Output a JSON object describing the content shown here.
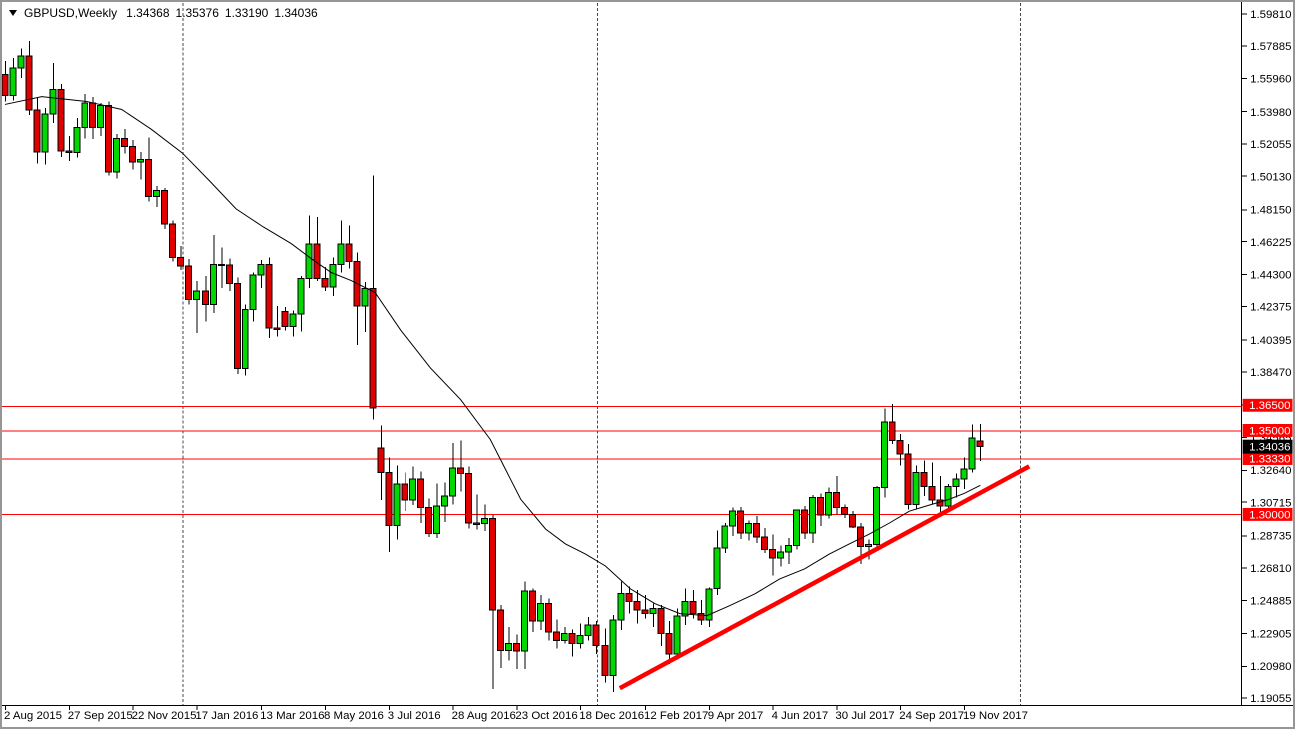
{
  "header": {
    "symbol": "GBPUSD,Weekly",
    "open": "1.34368",
    "high": "1.35376",
    "low": "1.33190",
    "close": "1.34036"
  },
  "colors": {
    "up_candle": "#00D800",
    "down_candle": "#E00000",
    "candle_outline": "#000000",
    "level_line": "#FF0000",
    "trend_line": "#FF0000",
    "ma_line": "#000000",
    "axis_line": "#000000",
    "separator": "#4a4a4a",
    "level_label_bg": "#FF0000",
    "current_label_bg": "#000000",
    "label_text": "#FFFFFF",
    "axis_text": "#000000"
  },
  "chart_data": {
    "type": "candlestick",
    "title": "GBPUSD,Weekly",
    "symbol": "GBPUSD",
    "timeframe": "Weekly",
    "current_ohlc": {
      "open": 1.34368,
      "high": 1.35376,
      "low": 1.3319,
      "close": 1.34036
    },
    "x_axis_labels": [
      "2 Aug 2015",
      "27 Sep 2015",
      "22 Nov 2015",
      "17 Jan 2016",
      "13 Mar 2016",
      "8 May 2016",
      "3 Jul 2016",
      "28 Aug 2016",
      "23 Oct 2016",
      "18 Dec 2016",
      "12 Feb 2017",
      "9 Apr 2017",
      "4 Jun 2017",
      "30 Jul 2017",
      "24 Sep 2017",
      "19 Nov 2017"
    ],
    "candles_per_x_label": 8,
    "y_axis_ticks": [
      "1.59810",
      "1.57885",
      "1.55960",
      "1.53980",
      "1.52055",
      "1.50130",
      "1.48150",
      "1.46225",
      "1.44300",
      "1.42375",
      "1.40395",
      "1.38470",
      "1.36545",
      "1.34565",
      "1.32640",
      "1.30715",
      "1.28735",
      "1.26810",
      "1.24885",
      "1.22905",
      "1.20980",
      "1.19055"
    ],
    "y_range": {
      "top_price": 1.5981,
      "bottom_price": 1.19055
    },
    "grid": "off",
    "horizontal_levels": [
      {
        "price": 1.365,
        "label": "1.36500"
      },
      {
        "price": 1.35,
        "label": "1.35000"
      },
      {
        "price": 1.3333,
        "label": "1.33330"
      },
      {
        "price": 1.3,
        "label": "1.30000"
      }
    ],
    "current_price": {
      "value": 1.34036,
      "label": "1.34036"
    },
    "trendline": {
      "from_index": 76.9,
      "from_price": 1.1965,
      "to_index": 128.1,
      "to_price": 1.3286
    },
    "year_separator_indices": [
      22.2,
      74.1,
      126.9
    ],
    "ma_points": [
      [
        0,
        1.5442
      ],
      [
        4.6,
        1.5489
      ],
      [
        10.2,
        1.546
      ],
      [
        14.6,
        1.5412
      ],
      [
        18.3,
        1.5294
      ],
      [
        22.2,
        1.5152
      ],
      [
        25.6,
        1.4986
      ],
      [
        28.9,
        1.482
      ],
      [
        32.3,
        1.4713
      ],
      [
        35.8,
        1.4613
      ],
      [
        38.3,
        1.4524
      ],
      [
        40.8,
        1.4441
      ],
      [
        43.3,
        1.4393
      ],
      [
        46.3,
        1.4322
      ],
      [
        49.5,
        1.4097
      ],
      [
        53.2,
        1.3872
      ],
      [
        57.0,
        1.3683
      ],
      [
        60.7,
        1.3446
      ],
      [
        64.5,
        1.309
      ],
      [
        67.6,
        1.2913
      ],
      [
        70.1,
        1.2824
      ],
      [
        72.6,
        1.2764
      ],
      [
        75.1,
        1.2693
      ],
      [
        78.2,
        1.2557
      ],
      [
        81.3,
        1.2468
      ],
      [
        84.4,
        1.2409
      ],
      [
        87.8,
        1.2397
      ],
      [
        90.6,
        1.2456
      ],
      [
        93.8,
        1.2527
      ],
      [
        96.9,
        1.2616
      ],
      [
        100.0,
        1.2675
      ],
      [
        103.1,
        1.2764
      ],
      [
        105.6,
        1.2824
      ],
      [
        108.1,
        1.2883
      ],
      [
        110.6,
        1.2948
      ],
      [
        113.1,
        1.3019
      ],
      [
        115.6,
        1.3055
      ],
      [
        118.1,
        1.309
      ],
      [
        120.0,
        1.3126
      ],
      [
        122.0,
        1.3173
      ]
    ],
    "candles": [
      [
        1.562,
        1.57,
        1.546,
        1.5495
      ],
      [
        1.5495,
        1.572,
        1.5465,
        1.566
      ],
      [
        1.566,
        1.5775,
        1.56,
        1.573
      ],
      [
        1.573,
        1.5819,
        1.538,
        1.541
      ],
      [
        1.541,
        1.548,
        1.509,
        1.516
      ],
      [
        1.516,
        1.542,
        1.5085,
        1.5385
      ],
      [
        1.5385,
        1.569,
        1.533,
        1.553
      ],
      [
        1.553,
        1.5565,
        1.513,
        1.5165
      ],
      [
        1.5165,
        1.5255,
        1.5105,
        1.5155
      ],
      [
        1.5155,
        1.536,
        1.5125,
        1.5305
      ],
      [
        1.5305,
        1.5505,
        1.524,
        1.545
      ],
      [
        1.545,
        1.5485,
        1.5235,
        1.5305
      ],
      [
        1.5305,
        1.545,
        1.5255,
        1.5435
      ],
      [
        1.5435,
        1.546,
        1.502,
        1.504
      ],
      [
        1.504,
        1.5265,
        1.5,
        1.524
      ],
      [
        1.524,
        1.5295,
        1.515,
        1.519
      ],
      [
        1.519,
        1.523,
        1.5055,
        1.51
      ],
      [
        1.51,
        1.516,
        1.4995,
        1.5115
      ],
      [
        1.5115,
        1.5245,
        1.4865,
        1.4895
      ],
      [
        1.4895,
        1.4955,
        1.483,
        1.493
      ],
      [
        1.493,
        1.4945,
        1.47,
        1.473
      ],
      [
        1.473,
        1.475,
        1.4505,
        1.453
      ],
      [
        1.453,
        1.46,
        1.4455,
        1.448
      ],
      [
        1.448,
        1.452,
        1.425,
        1.428
      ],
      [
        1.428,
        1.439,
        1.408,
        1.433
      ],
      [
        1.433,
        1.442,
        1.415,
        1.425
      ],
      [
        1.425,
        1.4665,
        1.42,
        1.449
      ],
      [
        1.449,
        1.459,
        1.435,
        1.4485
      ],
      [
        1.4485,
        1.4525,
        1.433,
        1.4375
      ],
      [
        1.4375,
        1.441,
        1.3835,
        1.387
      ],
      [
        1.387,
        1.425,
        1.3828,
        1.422
      ],
      [
        1.422,
        1.444,
        1.415,
        1.4425
      ],
      [
        1.4425,
        1.4515,
        1.435,
        1.449
      ],
      [
        1.449,
        1.453,
        1.405,
        1.411
      ],
      [
        1.411,
        1.424,
        1.406,
        1.4105
      ],
      [
        1.421,
        1.4235,
        1.4095,
        1.412
      ],
      [
        1.412,
        1.4215,
        1.406,
        1.4195
      ],
      [
        1.4195,
        1.442,
        1.409,
        1.4405
      ],
      [
        1.4405,
        1.478,
        1.435,
        1.461
      ],
      [
        1.461,
        1.477,
        1.439,
        1.4405
      ],
      [
        1.4405,
        1.4475,
        1.433,
        1.4355
      ],
      [
        1.4355,
        1.453,
        1.43,
        1.449
      ],
      [
        1.449,
        1.475,
        1.444,
        1.461
      ],
      [
        1.461,
        1.472,
        1.4465,
        1.4505
      ],
      [
        1.4505,
        1.456,
        1.401,
        1.424
      ],
      [
        1.424,
        1.4385,
        1.4085,
        1.4345
      ],
      [
        1.4345,
        1.502,
        1.3565,
        1.3635
      ],
      [
        1.3395,
        1.353,
        1.3085,
        1.325
      ],
      [
        1.325,
        1.334,
        1.2775,
        1.2935
      ],
      [
        1.2935,
        1.329,
        1.285,
        1.318
      ],
      [
        1.318,
        1.325,
        1.302,
        1.3085
      ],
      [
        1.3085,
        1.3285,
        1.3055,
        1.321
      ],
      [
        1.321,
        1.3255,
        1.295,
        1.304
      ],
      [
        1.304,
        1.3095,
        1.2865,
        1.2885
      ],
      [
        1.2885,
        1.3185,
        1.286,
        1.305
      ],
      [
        1.305,
        1.319,
        1.2955,
        1.311
      ],
      [
        1.311,
        1.3425,
        1.306,
        1.3275
      ],
      [
        1.3275,
        1.344,
        1.3135,
        1.3245
      ],
      [
        1.3245,
        1.3285,
        1.2915,
        1.295
      ],
      [
        1.295,
        1.312,
        1.291,
        1.2945
      ],
      [
        1.2945,
        1.306,
        1.29,
        1.2975
      ],
      [
        1.2975,
        1.2995,
        1.196,
        1.243
      ],
      [
        1.243,
        1.246,
        1.2085,
        1.219
      ],
      [
        1.219,
        1.233,
        1.213,
        1.223
      ],
      [
        1.223,
        1.2285,
        1.208,
        1.2185
      ],
      [
        1.2185,
        1.26,
        1.208,
        1.2545
      ],
      [
        1.2545,
        1.256,
        1.23,
        1.2365
      ],
      [
        1.2365,
        1.252,
        1.231,
        1.247
      ],
      [
        1.247,
        1.25,
        1.225,
        1.23
      ],
      [
        1.23,
        1.2375,
        1.22,
        1.225
      ],
      [
        1.225,
        1.233,
        1.223,
        1.229
      ],
      [
        1.229,
        1.2315,
        1.2155,
        1.223
      ],
      [
        1.223,
        1.235,
        1.22,
        1.228
      ],
      [
        1.228,
        1.239,
        1.225,
        1.234
      ],
      [
        1.234,
        1.2365,
        1.217,
        1.222
      ],
      [
        1.222,
        1.232,
        1.2,
        1.204
      ],
      [
        1.204,
        1.24,
        1.1943,
        1.237
      ],
      [
        1.237,
        1.26,
        1.231,
        1.253
      ],
      [
        1.253,
        1.257,
        1.241,
        1.248
      ],
      [
        1.248,
        1.255,
        1.235,
        1.243
      ],
      [
        1.243,
        1.252,
        1.238,
        1.241
      ],
      [
        1.241,
        1.247,
        1.233,
        1.244
      ],
      [
        1.244,
        1.246,
        1.2215,
        1.229
      ],
      [
        1.229,
        1.2365,
        1.211,
        1.217
      ],
      [
        1.217,
        1.244,
        1.2135,
        1.2395
      ],
      [
        1.2395,
        1.256,
        1.234,
        1.248
      ],
      [
        1.248,
        1.255,
        1.238,
        1.241
      ],
      [
        1.241,
        1.249,
        1.234,
        1.237
      ],
      [
        1.237,
        1.2565,
        1.233,
        1.2555
      ],
      [
        1.256,
        1.2905,
        1.252,
        1.28
      ],
      [
        1.28,
        1.295,
        1.277,
        1.293
      ],
      [
        1.293,
        1.304,
        1.287,
        1.302
      ],
      [
        1.302,
        1.3045,
        1.2855,
        1.289
      ],
      [
        1.289,
        1.2965,
        1.2845,
        1.2945
      ],
      [
        1.2945,
        1.299,
        1.283,
        1.2865
      ],
      [
        1.2865,
        1.292,
        1.277,
        1.279
      ],
      [
        1.279,
        1.288,
        1.2635,
        1.274
      ],
      [
        1.274,
        1.2815,
        1.269,
        1.2775
      ],
      [
        1.2775,
        1.286,
        1.2705,
        1.2815
      ],
      [
        1.2815,
        1.303,
        1.279,
        1.3025
      ],
      [
        1.3025,
        1.305,
        1.2855,
        1.289
      ],
      [
        1.289,
        1.3115,
        1.283,
        1.31
      ],
      [
        1.31,
        1.3125,
        1.293,
        1.2995
      ],
      [
        1.2995,
        1.316,
        1.2975,
        1.313
      ],
      [
        1.313,
        1.323,
        1.3,
        1.304
      ],
      [
        1.304,
        1.306,
        1.298,
        1.3
      ],
      [
        1.3,
        1.302,
        1.292,
        1.2925
      ],
      [
        1.2925,
        1.295,
        1.2705,
        1.281
      ],
      [
        1.281,
        1.285,
        1.273,
        1.282
      ],
      [
        1.282,
        1.317,
        1.279,
        1.316
      ],
      [
        1.316,
        1.363,
        1.31,
        1.355
      ],
      [
        1.355,
        1.3657,
        1.342,
        1.344
      ],
      [
        1.344,
        1.348,
        1.329,
        1.336
      ],
      [
        1.336,
        1.342,
        1.303,
        1.306
      ],
      [
        1.306,
        1.329,
        1.303,
        1.325
      ],
      [
        1.325,
        1.332,
        1.311,
        1.3165
      ],
      [
        1.3165,
        1.331,
        1.306,
        1.3085
      ],
      [
        1.3085,
        1.323,
        1.3,
        1.305
      ],
      [
        1.305,
        1.318,
        1.303,
        1.3165
      ],
      [
        1.3165,
        1.3245,
        1.31,
        1.321
      ],
      [
        1.321,
        1.334,
        1.315,
        1.327
      ],
      [
        1.327,
        1.3537,
        1.325,
        1.3455
      ],
      [
        1.34368,
        1.35376,
        1.3319,
        1.34036
      ]
    ]
  }
}
